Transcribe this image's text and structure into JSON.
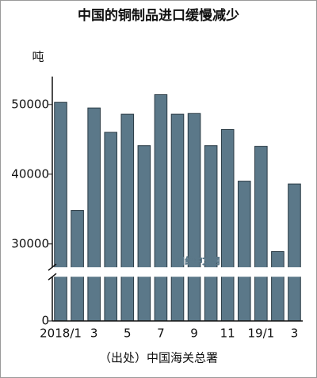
{
  "chart_data": {
    "type": "bar",
    "title": "中国的铜制品进口缓慢减少",
    "y_label": "吨",
    "source": "（出处）中国海关总署",
    "watermark": "日经中文网",
    "categories": [
      "2018/1",
      null,
      "3",
      null,
      "5",
      null,
      "7",
      null,
      "9",
      null,
      "11",
      null,
      "19/1",
      null,
      "3"
    ],
    "values": [
      50300,
      34800,
      49500,
      46000,
      48600,
      44100,
      51400,
      48600,
      48700,
      44100,
      46400,
      39000,
      44000,
      28900,
      38600
    ],
    "color": "#5b7889",
    "ylim": [
      0,
      54000
    ],
    "yticks": [
      0,
      30000,
      40000,
      50000
    ],
    "axis_break": [
      6000,
      27000
    ]
  }
}
